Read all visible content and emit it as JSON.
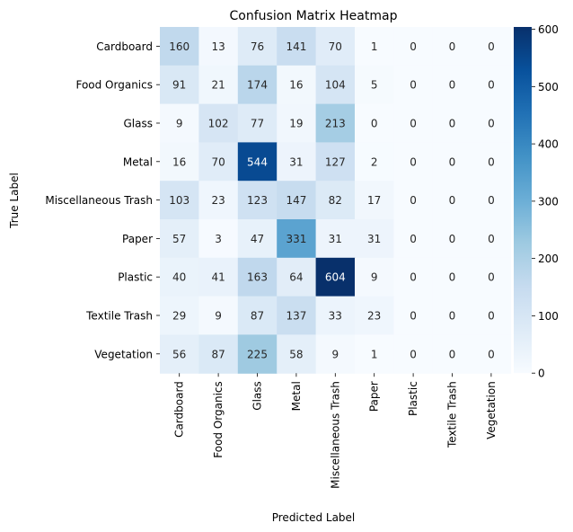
{
  "chart_data": {
    "type": "heatmap",
    "title": "Confusion Matrix Heatmap",
    "xlabel": "Predicted Label",
    "ylabel": "True Label",
    "x_categories": [
      "Cardboard",
      "Food Organics",
      "Glass",
      "Metal",
      "Miscellaneous Trash",
      "Paper",
      "Plastic",
      "Textile Trash",
      "Vegetation"
    ],
    "y_categories": [
      "Cardboard",
      "Food Organics",
      "Glass",
      "Metal",
      "Miscellaneous Trash",
      "Paper",
      "Plastic",
      "Textile Trash",
      "Vegetation"
    ],
    "values": [
      [
        160,
        13,
        76,
        141,
        70,
        1,
        0,
        0,
        0
      ],
      [
        91,
        21,
        174,
        16,
        104,
        5,
        0,
        0,
        0
      ],
      [
        9,
        102,
        77,
        19,
        213,
        0,
        0,
        0,
        0
      ],
      [
        16,
        70,
        544,
        31,
        127,
        2,
        0,
        0,
        0
      ],
      [
        103,
        23,
        123,
        147,
        82,
        17,
        0,
        0,
        0
      ],
      [
        57,
        3,
        47,
        331,
        31,
        31,
        0,
        0,
        0
      ],
      [
        40,
        41,
        163,
        64,
        604,
        9,
        0,
        0,
        0
      ],
      [
        29,
        9,
        87,
        137,
        33,
        23,
        0,
        0,
        0
      ],
      [
        56,
        87,
        225,
        58,
        9,
        1,
        0,
        0,
        0
      ]
    ],
    "colormap": "Blues",
    "value_range": [
      0,
      604
    ],
    "colorbar_ticks": [
      0,
      100,
      200,
      300,
      400,
      500,
      600
    ],
    "colors": {
      "low": "#f7fbff",
      "high": "#08306b",
      "text_dark": "#262626",
      "text_light": "#ffffff"
    }
  }
}
